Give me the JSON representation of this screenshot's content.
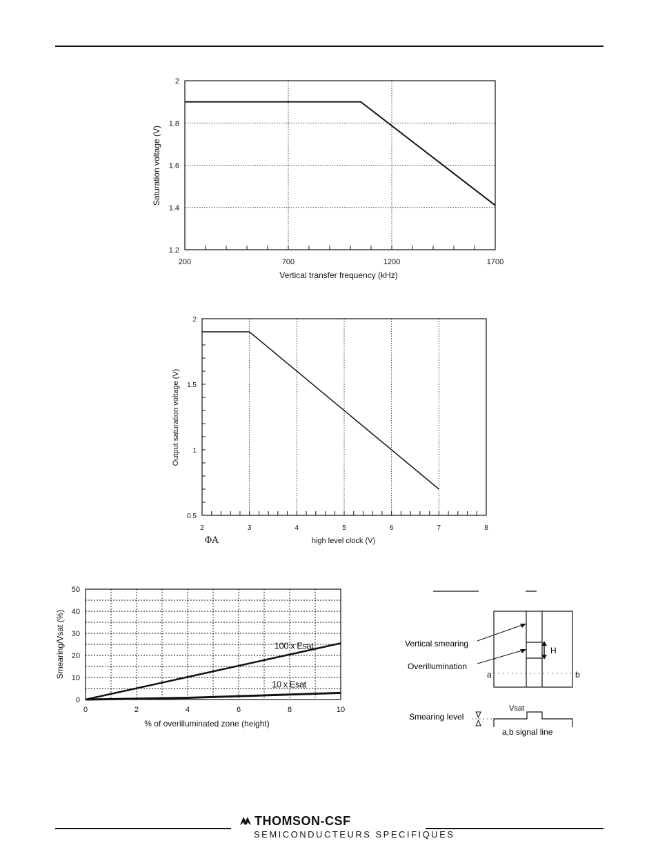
{
  "chart_data": [
    {
      "type": "line",
      "title": "",
      "xlabel": "Vertical transfer frequency (kHz)",
      "ylabel": "Saturation voltage (V)",
      "xlim": [
        200,
        1700
      ],
      "ylim": [
        1.2,
        2
      ],
      "x_ticks": [
        "200",
        "700",
        "1200",
        "1700"
      ],
      "y_ticks": [
        "1.2",
        "1.4",
        "1.6",
        "1.8",
        "2"
      ],
      "grid": true,
      "series": [
        {
          "x": [
            200,
            1050,
            1700
          ],
          "y": [
            1.9,
            1.9,
            1.41
          ]
        }
      ]
    },
    {
      "type": "line",
      "title": "",
      "xlabel": "high level clock (V)",
      "xlabel_prefix": "ΦA",
      "ylabel": "Output saturation voltage (V)",
      "xlim": [
        2,
        8
      ],
      "ylim": [
        0.5,
        2
      ],
      "x_ticks": [
        "2",
        "3",
        "4",
        "5",
        "6",
        "7",
        "8"
      ],
      "y_ticks": [
        "0.5",
        "1",
        "1.5",
        "2"
      ],
      "grid": true,
      "series": [
        {
          "x": [
            2,
            3,
            7
          ],
          "y": [
            1.9,
            1.9,
            0.7
          ]
        }
      ]
    },
    {
      "type": "line",
      "title": "",
      "xlabel": "% of overilluminated zone (height)",
      "ylabel": "Smearing/Vsat (%)",
      "xlim": [
        0,
        10
      ],
      "ylim": [
        0,
        50
      ],
      "x_ticks": [
        "0",
        "2",
        "4",
        "6",
        "8",
        "10"
      ],
      "y_ticks": [
        "0",
        "10",
        "20",
        "30",
        "40",
        "50"
      ],
      "grid": true,
      "series": [
        {
          "name": "100 x Esat",
          "x": [
            0,
            10
          ],
          "y": [
            0,
            25.5
          ]
        },
        {
          "name": "10 x Esat",
          "x": [
            0,
            4,
            10
          ],
          "y": [
            0,
            0.8,
            3
          ]
        }
      ]
    }
  ],
  "diagram": {
    "vertical_smearing": "Vertical smearing",
    "overillumination": "Overillumination",
    "h_label": "H",
    "a_label": "a",
    "b_label": "b",
    "smearing_level": "Smearing level",
    "vsat": "Vsat",
    "signal_line": "a,b signal line"
  },
  "footer": {
    "brand": "THOMSON-CSF",
    "subtitle": "SEMICONDUCTEURS SPECIFIQUES"
  }
}
